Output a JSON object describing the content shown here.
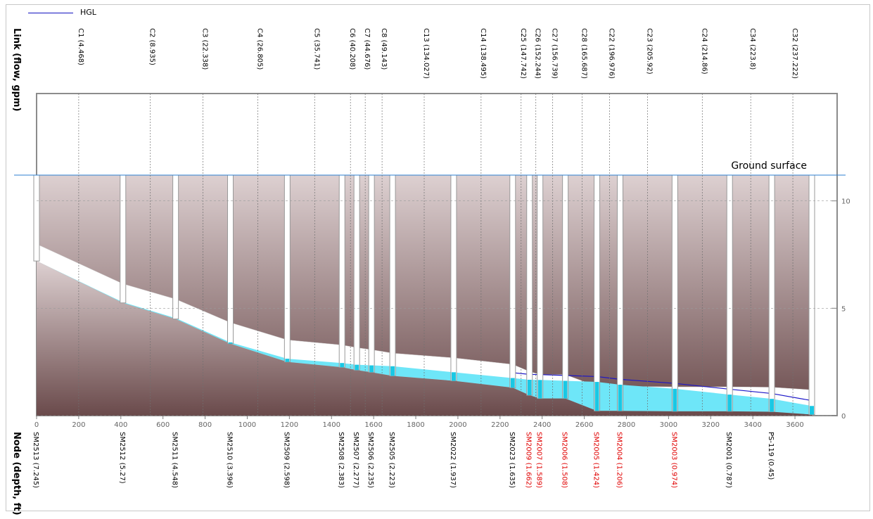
{
  "legend": {
    "hgl_label": "HGL",
    "hgl_color": "#1c16c8"
  },
  "annotation": {
    "ground_surface": "Ground surface"
  },
  "colors": {
    "ground_top": "#ddd0d1",
    "ground_bottom": "#6a4a4b",
    "water": "#6ee6f8",
    "ground_line": "#2c7fd0",
    "node_text": "#000000",
    "node_text_flagged": "#e00000"
  },
  "chart_data": {
    "type": "profile",
    "link_axis_label": "Link (flow, gpm)",
    "node_axis_label": "Node (depth, ft)",
    "x_ticks": [
      "0",
      "200",
      "400",
      "600",
      "800",
      "1000",
      "1200",
      "1400",
      "1600",
      "1800",
      "2000",
      "2200",
      "2400",
      "2600",
      "2800",
      "3000",
      "3200",
      "3400",
      "3600"
    ],
    "y_ticks": [
      "0",
      "5",
      "10"
    ],
    "xlim": [
      0,
      3710
    ],
    "ylim": [
      0,
      11.2
    ],
    "ground_surface_elevation": 11.2,
    "links": [
      {
        "label": "C1 (4.468)",
        "station": 200
      },
      {
        "label": "C2 (8.935)",
        "station": 540
      },
      {
        "label": "C3 (22.338)",
        "station": 790
      },
      {
        "label": "C4 (26.805)",
        "station": 1050
      },
      {
        "label": "C5 (35.741)",
        "station": 1320
      },
      {
        "label": "C6 (40.208)",
        "station": 1490
      },
      {
        "label": "C7 (44.676)",
        "station": 1560
      },
      {
        "label": "C8 (49.143)",
        "station": 1640
      },
      {
        "label": "C13 (134.027)",
        "station": 1840
      },
      {
        "label": "C14 (138.495)",
        "station": 2110
      },
      {
        "label": "C25 (147.742)",
        "station": 2300
      },
      {
        "label": "C26 (152.244)",
        "station": 2370
      },
      {
        "label": "C27 (156.739)",
        "station": 2450
      },
      {
        "label": "C28 (165.687)",
        "station": 2590
      },
      {
        "label": "C22 (196.976)",
        "station": 2720
      },
      {
        "label": "C23 (205.92)",
        "station": 2900
      },
      {
        "label": "C24 (214.86)",
        "station": 3160
      },
      {
        "label": "C34 (223.8)",
        "station": 3390
      },
      {
        "label": "C32 (237.222)",
        "station": 3590
      }
    ],
    "nodes": [
      {
        "label": "SM2513 (7.245)",
        "station": 0,
        "invert_depth": 7.2,
        "water_depth": 0.0,
        "flagged": false
      },
      {
        "label": "SM2512 (5.27)",
        "station": 410,
        "invert_depth": 5.25,
        "water_depth": 0.03,
        "flagged": false
      },
      {
        "label": "SM2511 (4.548)",
        "station": 660,
        "invert_depth": 4.5,
        "water_depth": 0.04,
        "flagged": false
      },
      {
        "label": "SM2510 (3.396)",
        "station": 920,
        "invert_depth": 3.35,
        "water_depth": 0.06,
        "flagged": false
      },
      {
        "label": "SM2509 (2.598)",
        "station": 1190,
        "invert_depth": 2.5,
        "water_depth": 0.15,
        "flagged": false
      },
      {
        "label": "SM2508 (2.383)",
        "station": 1450,
        "invert_depth": 2.25,
        "water_depth": 0.2,
        "flagged": false
      },
      {
        "label": "SM2507 (2.277)",
        "station": 1520,
        "invert_depth": 2.12,
        "water_depth": 0.25,
        "flagged": false
      },
      {
        "label": "SM2506 (2.235)",
        "station": 1590,
        "invert_depth": 2.02,
        "water_depth": 0.32,
        "flagged": false
      },
      {
        "label": "SM2505 (2.223)",
        "station": 1690,
        "invert_depth": 1.85,
        "water_depth": 0.45,
        "flagged": false
      },
      {
        "label": "SM2022 (1.937)",
        "station": 1980,
        "invert_depth": 1.62,
        "water_depth": 0.4,
        "flagged": false
      },
      {
        "label": "SM2023 (1.635)",
        "station": 2260,
        "invert_depth": 1.3,
        "water_depth": 0.45,
        "flagged": false
      },
      {
        "label": "SM2009 (1.662)",
        "station": 2340,
        "invert_depth": 0.95,
        "water_depth": 0.72,
        "flagged": true
      },
      {
        "label": "SM2007 (1.589)",
        "station": 2390,
        "invert_depth": 0.8,
        "water_depth": 0.86,
        "flagged": true
      },
      {
        "label": "SM2006 (1.508)",
        "station": 2510,
        "invert_depth": 0.8,
        "water_depth": 0.82,
        "flagged": true
      },
      {
        "label": "SM2005 (1.424)",
        "station": 2660,
        "invert_depth": 0.22,
        "water_depth": 1.35,
        "flagged": true
      },
      {
        "label": "SM2004 (1.206)",
        "station": 2770,
        "invert_depth": 0.22,
        "water_depth": 1.22,
        "flagged": true
      },
      {
        "label": "SM2003 (0.974)",
        "station": 3030,
        "invert_depth": 0.2,
        "water_depth": 1.05,
        "flagged": true
      },
      {
        "label": "SM2001 (0.787)",
        "station": 3290,
        "invert_depth": 0.2,
        "water_depth": 0.78,
        "flagged": false
      },
      {
        "label": "PS-119 (0.45)",
        "station": 3490,
        "invert_depth": 0.18,
        "water_depth": 0.6,
        "flagged": false
      },
      {
        "label": "",
        "station": 3680,
        "invert_depth": 0.05,
        "water_depth": 0.4,
        "flagged": false
      }
    ]
  }
}
